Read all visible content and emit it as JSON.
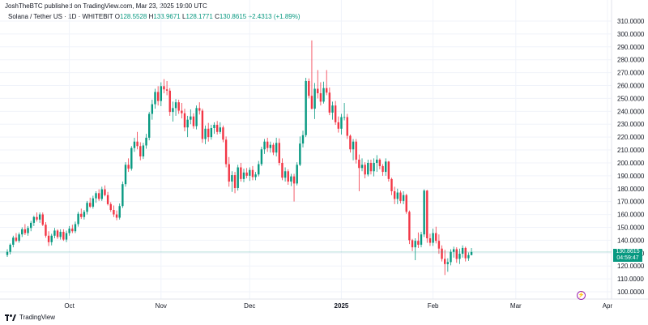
{
  "header": {
    "publish_line": "JoshTheBTC published on TradingView.com, Mar 23, 2025 19:00 UTC"
  },
  "legend": {
    "symbol": "Solana / Tether US · 1D · WHITEBIT",
    "o_key": "O",
    "o": "128.5528",
    "h_key": "H",
    "h": "133.9671",
    "l_key": "L",
    "l": "128.1771",
    "c_key": "C",
    "c": "130.8615",
    "change": "+2.4313 (+1.89%)"
  },
  "price_badge": {
    "price": "130.8615",
    "countdown": "04:59:47"
  },
  "footer": {
    "brand": "TradingView"
  },
  "colors": {
    "up": "#089981",
    "down": "#f23645",
    "price_line": "#089981"
  },
  "chart_data": {
    "type": "candlestick",
    "title": "Solana / Tether US · 1D · WHITEBIT",
    "xlabel": "",
    "ylabel": "",
    "ylim": [
      95,
      315
    ],
    "y_ticks": [
      "100.0000",
      "110.0000",
      "120.0000",
      "130.0000",
      "140.0000",
      "150.0000",
      "160.0000",
      "170.0000",
      "180.0000",
      "190.0000",
      "200.0000",
      "210.0000",
      "220.0000",
      "230.0000",
      "240.0000",
      "250.0000",
      "260.0000",
      "270.0000",
      "280.0000",
      "290.0000",
      "300.0000",
      "310.0000"
    ],
    "x_ticks": [
      {
        "label": "Oct",
        "index": 21,
        "bold": false
      },
      {
        "label": "Nov",
        "index": 52,
        "bold": false
      },
      {
        "label": "Dec",
        "index": 82,
        "bold": false
      },
      {
        "label": "2025",
        "index": 113,
        "bold": true
      },
      {
        "label": "Feb",
        "index": 144,
        "bold": false
      },
      {
        "label": "Mar",
        "index": 172,
        "bold": false
      },
      {
        "label": "Apr",
        "index": 203,
        "bold": false
      }
    ],
    "last_price": 130.8615,
    "candles": [
      [
        128.5,
        133.0,
        127.0,
        131.0
      ],
      [
        131.0,
        137.5,
        129.0,
        136.5
      ],
      [
        136.5,
        143.5,
        134.5,
        142.0
      ],
      [
        142.0,
        145.5,
        138.5,
        139.5
      ],
      [
        139.5,
        146.0,
        138.0,
        144.5
      ],
      [
        144.5,
        150.0,
        142.5,
        148.5
      ],
      [
        148.5,
        152.5,
        144.0,
        145.5
      ],
      [
        145.5,
        151.0,
        143.5,
        149.5
      ],
      [
        149.5,
        155.0,
        147.0,
        153.5
      ],
      [
        153.5,
        159.0,
        151.0,
        158.0
      ],
      [
        158.0,
        161.5,
        154.5,
        156.0
      ],
      [
        156.0,
        161.5,
        153.5,
        160.0
      ],
      [
        160.0,
        161.5,
        151.0,
        152.0
      ],
      [
        152.0,
        154.0,
        142.0,
        143.5
      ],
      [
        143.5,
        147.0,
        135.5,
        138.5
      ],
      [
        138.5,
        145.0,
        136.0,
        143.5
      ],
      [
        143.5,
        149.5,
        141.5,
        147.5
      ],
      [
        147.5,
        148.5,
        141.0,
        142.5
      ],
      [
        142.5,
        148.5,
        140.5,
        146.5
      ],
      [
        146.5,
        148.5,
        139.5,
        140.5
      ],
      [
        140.5,
        147.5,
        138.5,
        145.5
      ],
      [
        145.5,
        151.0,
        143.5,
        149.0
      ],
      [
        149.0,
        152.0,
        145.5,
        147.0
      ],
      [
        147.0,
        154.5,
        145.5,
        152.5
      ],
      [
        152.5,
        162.0,
        150.5,
        160.5
      ],
      [
        160.5,
        164.5,
        156.5,
        158.0
      ],
      [
        158.0,
        163.5,
        156.0,
        162.0
      ],
      [
        162.0,
        170.5,
        160.0,
        169.0
      ],
      [
        169.0,
        173.0,
        165.0,
        166.0
      ],
      [
        166.0,
        174.5,
        164.5,
        172.5
      ],
      [
        172.5,
        178.0,
        169.0,
        176.5
      ],
      [
        176.5,
        179.5,
        170.5,
        172.0
      ],
      [
        172.0,
        181.5,
        170.5,
        179.5
      ],
      [
        179.5,
        182.5,
        174.0,
        175.0
      ],
      [
        175.0,
        177.5,
        167.0,
        168.0
      ],
      [
        168.0,
        169.5,
        162.0,
        163.5
      ],
      [
        163.5,
        167.0,
        158.0,
        160.0
      ],
      [
        160.0,
        163.0,
        155.5,
        157.5
      ],
      [
        157.5,
        168.5,
        156.0,
        166.5
      ],
      [
        166.5,
        185.5,
        165.0,
        183.5
      ],
      [
        183.5,
        200.5,
        181.5,
        198.5
      ],
      [
        198.5,
        203.5,
        193.0,
        195.5
      ],
      [
        195.5,
        213.0,
        194.0,
        211.5
      ],
      [
        211.5,
        219.5,
        208.5,
        216.5
      ],
      [
        216.5,
        224.0,
        210.5,
        213.0
      ],
      [
        213.0,
        216.0,
        202.0,
        205.0
      ],
      [
        205.0,
        215.5,
        203.0,
        213.5
      ],
      [
        213.5,
        222.5,
        211.0,
        219.5
      ],
      [
        219.5,
        239.5,
        217.5,
        238.0
      ],
      [
        238.0,
        249.0,
        233.5,
        245.5
      ],
      [
        245.5,
        257.5,
        242.0,
        255.0
      ],
      [
        255.0,
        259.5,
        244.5,
        248.0
      ],
      [
        248.0,
        262.5,
        244.0,
        259.5
      ],
      [
        259.5,
        265.0,
        254.0,
        257.0
      ],
      [
        257.0,
        263.5,
        252.5,
        256.0
      ],
      [
        256.0,
        258.0,
        236.5,
        239.5
      ],
      [
        239.5,
        247.5,
        232.0,
        242.5
      ],
      [
        242.5,
        249.5,
        236.5,
        247.0
      ],
      [
        247.0,
        249.0,
        238.0,
        240.5
      ],
      [
        240.5,
        246.5,
        234.5,
        238.5
      ],
      [
        238.5,
        242.0,
        224.5,
        227.5
      ],
      [
        227.5,
        236.5,
        220.0,
        233.5
      ],
      [
        233.5,
        241.5,
        230.0,
        236.0
      ],
      [
        236.0,
        238.5,
        226.5,
        228.5
      ],
      [
        228.5,
        244.5,
        226.0,
        242.5
      ],
      [
        242.5,
        247.0,
        237.5,
        240.5
      ],
      [
        240.5,
        242.0,
        215.5,
        218.5
      ],
      [
        218.5,
        229.0,
        214.5,
        226.5
      ],
      [
        226.5,
        231.0,
        216.5,
        220.0
      ],
      [
        220.0,
        229.5,
        218.0,
        227.0
      ],
      [
        227.0,
        231.5,
        222.5,
        229.5
      ],
      [
        229.5,
        232.5,
        222.0,
        224.0
      ],
      [
        224.0,
        231.5,
        222.5,
        227.5
      ],
      [
        227.5,
        229.0,
        216.0,
        218.0
      ],
      [
        218.0,
        220.5,
        196.5,
        199.0
      ],
      [
        199.0,
        204.5,
        181.5,
        185.5
      ],
      [
        185.5,
        193.5,
        177.5,
        190.5
      ],
      [
        190.5,
        193.0,
        176.5,
        180.5
      ],
      [
        180.5,
        198.5,
        178.5,
        196.5
      ],
      [
        196.5,
        200.0,
        185.5,
        187.5
      ],
      [
        187.5,
        195.5,
        185.0,
        192.5
      ],
      [
        192.5,
        196.0,
        188.0,
        190.0
      ],
      [
        190.0,
        196.5,
        186.0,
        194.5
      ],
      [
        194.5,
        197.5,
        186.5,
        189.0
      ],
      [
        189.0,
        193.0,
        186.5,
        191.0
      ],
      [
        191.0,
        201.5,
        189.5,
        199.0
      ],
      [
        199.0,
        212.5,
        197.5,
        210.5
      ],
      [
        210.5,
        218.5,
        207.0,
        216.5
      ],
      [
        216.5,
        219.5,
        208.5,
        211.5
      ],
      [
        211.5,
        216.5,
        208.0,
        214.0
      ],
      [
        214.0,
        215.5,
        206.0,
        208.0
      ],
      [
        208.0,
        219.5,
        205.0,
        215.5
      ],
      [
        215.5,
        219.0,
        198.0,
        200.0
      ],
      [
        200.0,
        203.5,
        186.5,
        188.5
      ],
      [
        188.5,
        196.5,
        185.5,
        193.5
      ],
      [
        193.5,
        195.0,
        183.0,
        185.5
      ],
      [
        185.5,
        191.5,
        182.0,
        189.5
      ],
      [
        189.5,
        191.5,
        170.0,
        184.0
      ],
      [
        184.0,
        200.5,
        182.5,
        198.5
      ],
      [
        198.5,
        220.5,
        197.5,
        215.0
      ],
      [
        215.0,
        225.0,
        212.0,
        221.5
      ],
      [
        221.5,
        266.0,
        220.0,
        263.5
      ],
      [
        263.5,
        265.5,
        250.0,
        252.0
      ],
      [
        252.0,
        295.0,
        241.5,
        242.0
      ],
      [
        242.0,
        262.0,
        234.0,
        257.5
      ],
      [
        257.5,
        272.0,
        250.0,
        254.0
      ],
      [
        254.0,
        262.5,
        244.5,
        247.5
      ],
      [
        247.5,
        263.0,
        246.0,
        258.0
      ],
      [
        258.0,
        272.0,
        252.5,
        254.5
      ],
      [
        254.5,
        258.5,
        237.0,
        239.0
      ],
      [
        239.0,
        247.5,
        233.5,
        244.5
      ],
      [
        244.5,
        248.0,
        229.5,
        231.5
      ],
      [
        231.5,
        236.0,
        223.5,
        226.5
      ],
      [
        226.5,
        238.0,
        222.0,
        235.5
      ],
      [
        235.5,
        246.5,
        233.0,
        235.5
      ],
      [
        235.5,
        238.0,
        218.5,
        221.0
      ],
      [
        221.0,
        222.0,
        208.0,
        210.5
      ],
      [
        210.5,
        218.5,
        202.0,
        216.5
      ],
      [
        216.5,
        218.5,
        199.5,
        202.5
      ],
      [
        202.5,
        206.5,
        178.0,
        196.0
      ],
      [
        196.0,
        203.5,
        193.5,
        198.5
      ],
      [
        198.5,
        200.5,
        188.0,
        191.0
      ],
      [
        191.0,
        202.5,
        189.5,
        200.0
      ],
      [
        200.0,
        202.5,
        191.0,
        193.5
      ],
      [
        193.5,
        203.5,
        189.5,
        200.0
      ],
      [
        200.0,
        206.0,
        193.0,
        202.5
      ],
      [
        202.5,
        203.5,
        195.0,
        197.5
      ],
      [
        197.5,
        199.0,
        190.0,
        193.0
      ],
      [
        193.0,
        203.5,
        190.0,
        201.0
      ],
      [
        201.0,
        201.5,
        185.5,
        187.5
      ],
      [
        187.5,
        188.5,
        175.0,
        178.0
      ],
      [
        178.0,
        181.5,
        168.0,
        172.0
      ],
      [
        172.0,
        180.0,
        168.0,
        177.0
      ],
      [
        177.0,
        178.5,
        168.5,
        170.5
      ],
      [
        170.5,
        178.0,
        168.0,
        175.0
      ],
      [
        175.0,
        176.0,
        160.5,
        162.0
      ],
      [
        162.0,
        163.0,
        137.0,
        140.0
      ],
      [
        140.0,
        141.0,
        131.5,
        134.5
      ],
      [
        134.5,
        141.5,
        124.5,
        139.5
      ],
      [
        139.5,
        146.0,
        134.0,
        136.5
      ],
      [
        136.5,
        146.5,
        134.5,
        144.5
      ],
      [
        144.5,
        179.5,
        142.5,
        178.5
      ],
      [
        178.5,
        179.0,
        138.0,
        141.5
      ],
      [
        141.5,
        145.0,
        135.5,
        138.0
      ],
      [
        138.0,
        149.0,
        135.5,
        145.5
      ],
      [
        145.5,
        150.5,
        137.5,
        139.5
      ],
      [
        139.5,
        144.5,
        129.5,
        133.5
      ],
      [
        133.5,
        136.0,
        123.5,
        125.5
      ],
      [
        125.5,
        132.5,
        113.0,
        121.5
      ],
      [
        121.5,
        126.0,
        115.5,
        123.0
      ],
      [
        123.0,
        133.0,
        120.5,
        131.0
      ],
      [
        131.0,
        135.0,
        126.5,
        133.0
      ],
      [
        133.0,
        134.5,
        122.5,
        125.5
      ],
      [
        125.5,
        133.5,
        121.5,
        129.5
      ],
      [
        129.5,
        136.0,
        126.5,
        134.0
      ],
      [
        134.0,
        135.0,
        123.5,
        126.0
      ],
      [
        126.0,
        130.5,
        124.0,
        128.5
      ],
      [
        128.5,
        133.9671,
        128.1771,
        130.8615
      ]
    ]
  }
}
